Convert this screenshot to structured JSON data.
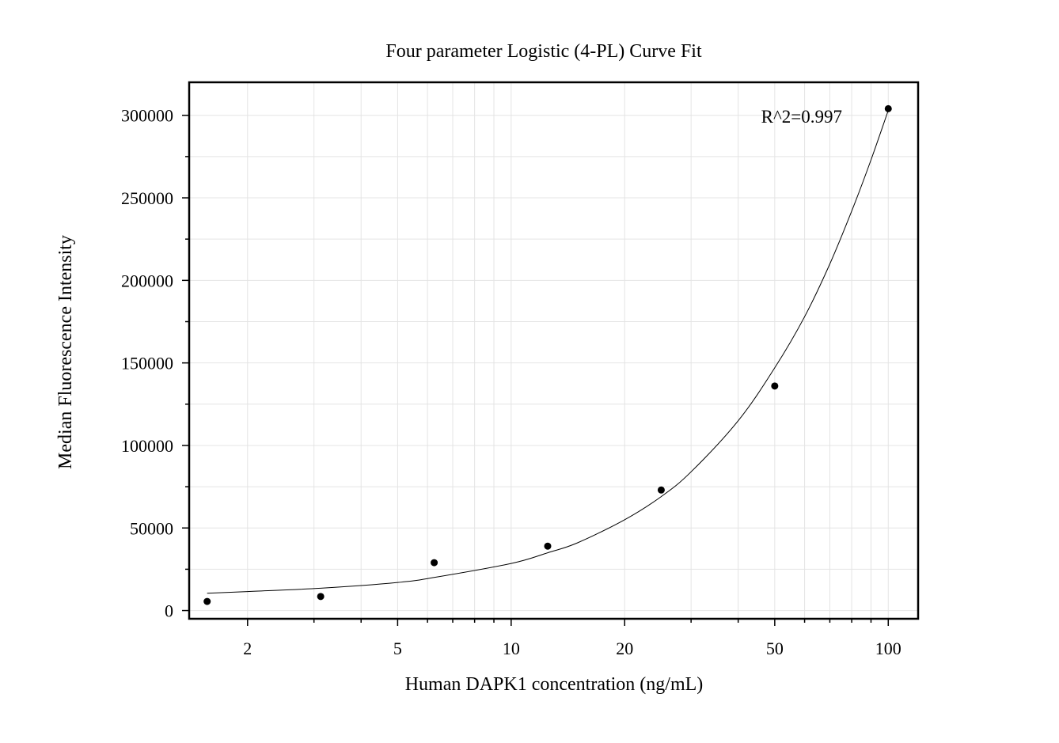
{
  "chart_data": {
    "type": "scatter",
    "title": "Four parameter Logistic (4-PL) Curve Fit",
    "xlabel": "Human DAPK1 concentration (ng/mL)",
    "ylabel": "Median Fluorescence Intensity",
    "x_scale": "log",
    "xlim": [
      1.4,
      120
    ],
    "ylim": [
      -5000,
      320000
    ],
    "grid": true,
    "x_ticks": [
      2,
      5,
      10,
      20,
      50,
      100
    ],
    "x_tick_labels": [
      "2",
      "5",
      "10",
      "20",
      "50",
      "100"
    ],
    "y_ticks": [
      0,
      50000,
      100000,
      150000,
      200000,
      250000,
      300000
    ],
    "y_tick_labels": [
      "0",
      "50000",
      "100000",
      "150000",
      "200000",
      "250000",
      "300000"
    ],
    "annotation": "R^2=0.997",
    "series": [
      {
        "kind": "points",
        "x": [
          1.5625,
          3.125,
          6.25,
          12.5,
          25,
          50,
          100
        ],
        "y": [
          5500,
          8500,
          29000,
          39000,
          73000,
          136000,
          304000
        ]
      },
      {
        "kind": "fit-curve",
        "x": [
          1.5625,
          2,
          3.125,
          5,
          6.25,
          10,
          12.5,
          15,
          20,
          25,
          30,
          40,
          50,
          60,
          70,
          80,
          90,
          100
        ],
        "y": [
          10500,
          11500,
          13500,
          17000,
          20000,
          28500,
          35000,
          41000,
          55000,
          69000,
          84000,
          115000,
          147000,
          178000,
          210000,
          242000,
          273000,
          303000
        ]
      }
    ]
  }
}
